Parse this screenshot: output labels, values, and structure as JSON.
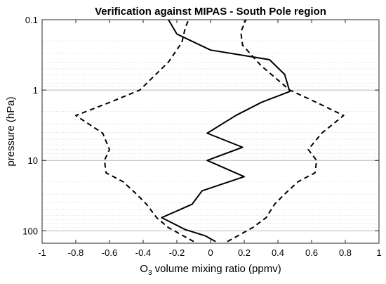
{
  "chart_data": {
    "type": "line",
    "title": "Verification against MIPAS - South Pole region",
    "xlabel_base": "O",
    "xlabel_sub": "3",
    "xlabel_rest": " volume mixing ratio (ppmv)",
    "ylabel": "pressure (hPa)",
    "xlim": [
      -1,
      1
    ],
    "ylim": [
      150,
      0.1
    ],
    "yscale": "log",
    "x_ticks": [
      -1,
      -0.8,
      -0.6,
      -0.4,
      -0.2,
      0,
      0.2,
      0.4,
      0.6,
      0.8,
      1
    ],
    "x_tick_labels": [
      "-1",
      "-0.8",
      "-0.6",
      "-0.4",
      "-0.2",
      "0",
      "0.2",
      "0.4",
      "0.6",
      "0.8",
      "1"
    ],
    "y_ticks": [
      0.1,
      1,
      10,
      100
    ],
    "y_tick_labels": [
      "0.1",
      "1",
      "10",
      "100"
    ],
    "grid": "y-minor (log)",
    "series": [
      {
        "style": "solid",
        "points": [
          {
            "x": 0.03,
            "y": 142
          },
          {
            "x": -0.03,
            "y": 118
          },
          {
            "x": -0.15,
            "y": 96
          },
          {
            "x": -0.29,
            "y": 65
          },
          {
            "x": -0.11,
            "y": 42
          },
          {
            "x": -0.05,
            "y": 27
          },
          {
            "x": 0.2,
            "y": 17
          },
          {
            "x": -0.02,
            "y": 10
          },
          {
            "x": 0.19,
            "y": 6.5
          },
          {
            "x": -0.02,
            "y": 4.1
          },
          {
            "x": 0.15,
            "y": 2.3
          },
          {
            "x": 0.3,
            "y": 1.5
          },
          {
            "x": 0.47,
            "y": 1.05
          },
          {
            "x": 0.44,
            "y": 0.6
          },
          {
            "x": 0.35,
            "y": 0.37
          },
          {
            "x": 0.0,
            "y": 0.27
          },
          {
            "x": -0.2,
            "y": 0.16
          },
          {
            "x": -0.25,
            "y": 0.1
          }
        ]
      },
      {
        "style": "dashed",
        "points": [
          {
            "x": -0.1,
            "y": 142
          },
          {
            "x": -0.25,
            "y": 90
          },
          {
            "x": -0.32,
            "y": 65
          },
          {
            "x": -0.38,
            "y": 42
          },
          {
            "x": -0.44,
            "y": 30
          },
          {
            "x": -0.52,
            "y": 20
          },
          {
            "x": -0.62,
            "y": 15
          },
          {
            "x": -0.63,
            "y": 10
          },
          {
            "x": -0.6,
            "y": 7
          },
          {
            "x": -0.64,
            "y": 4.1
          },
          {
            "x": -0.8,
            "y": 2.3
          },
          {
            "x": -0.6,
            "y": 1.5
          },
          {
            "x": -0.42,
            "y": 1.0
          },
          {
            "x": -0.25,
            "y": 0.4
          },
          {
            "x": -0.17,
            "y": 0.21
          },
          {
            "x": -0.15,
            "y": 0.13
          },
          {
            "x": -0.13,
            "y": 0.1
          }
        ]
      },
      {
        "style": "dashed",
        "points": [
          {
            "x": 0.1,
            "y": 142
          },
          {
            "x": 0.25,
            "y": 90
          },
          {
            "x": 0.33,
            "y": 65
          },
          {
            "x": 0.38,
            "y": 42
          },
          {
            "x": 0.44,
            "y": 30
          },
          {
            "x": 0.52,
            "y": 20
          },
          {
            "x": 0.62,
            "y": 15
          },
          {
            "x": 0.63,
            "y": 10
          },
          {
            "x": 0.58,
            "y": 7
          },
          {
            "x": 0.66,
            "y": 4.1
          },
          {
            "x": 0.79,
            "y": 2.3
          },
          {
            "x": 0.63,
            "y": 1.5
          },
          {
            "x": 0.47,
            "y": 1.0
          },
          {
            "x": 0.3,
            "y": 0.45
          },
          {
            "x": 0.19,
            "y": 0.23
          },
          {
            "x": 0.18,
            "y": 0.15
          },
          {
            "x": 0.21,
            "y": 0.1
          }
        ]
      }
    ]
  }
}
